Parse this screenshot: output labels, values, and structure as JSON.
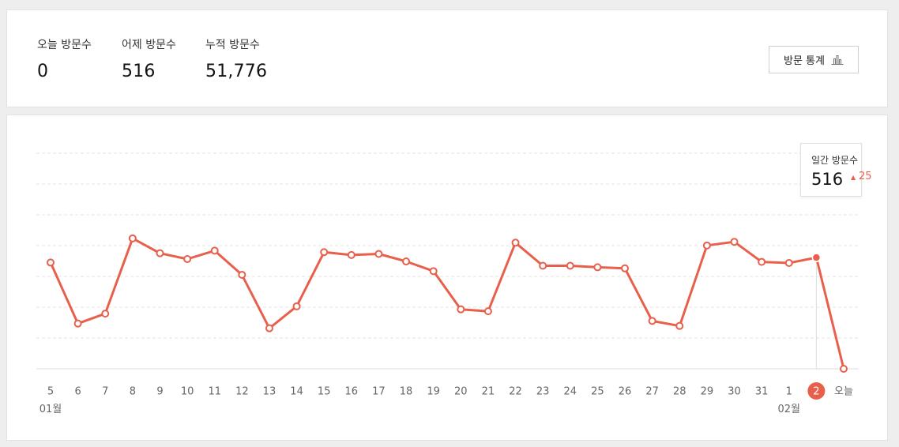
{
  "summary": {
    "today_label": "오늘 방문수",
    "today_value": "0",
    "yesterday_label": "어제 방문수",
    "yesterday_value": "516",
    "total_label": "누적 방문수",
    "total_value": "51,776",
    "stats_button_label": "방문 통계",
    "stats_button_icon": "bar-chart-icon"
  },
  "tooltip": {
    "label": "일간 방문수",
    "value": "516",
    "delta": "25",
    "delta_icon": "up-triangle-icon"
  },
  "colors": {
    "accent": "#e8604c",
    "grid": "#e3e3e3",
    "axis_text": "#666666"
  },
  "chart_data": {
    "type": "line",
    "title": "",
    "xlabel": "",
    "ylabel": "",
    "ylim": [
      0,
      1000
    ],
    "grid": true,
    "x": [
      "5",
      "6",
      "7",
      "8",
      "9",
      "10",
      "11",
      "12",
      "13",
      "14",
      "15",
      "16",
      "17",
      "18",
      "19",
      "20",
      "21",
      "22",
      "23",
      "24",
      "25",
      "26",
      "27",
      "28",
      "29",
      "30",
      "31",
      "1",
      "2",
      "오늘"
    ],
    "month_labels": [
      {
        "at_index": 0,
        "label": "01월"
      },
      {
        "at_index": 27,
        "label": "02월"
      }
    ],
    "highlight_index": 28,
    "series": [
      {
        "values": [
          493,
          210,
          256,
          605,
          536,
          509,
          548,
          436,
          188,
          290,
          541,
          528,
          533,
          498,
          453,
          276,
          267,
          585,
          478,
          478,
          471,
          466,
          222,
          199,
          572,
          589,
          496,
          491,
          516,
          0
        ]
      }
    ]
  }
}
